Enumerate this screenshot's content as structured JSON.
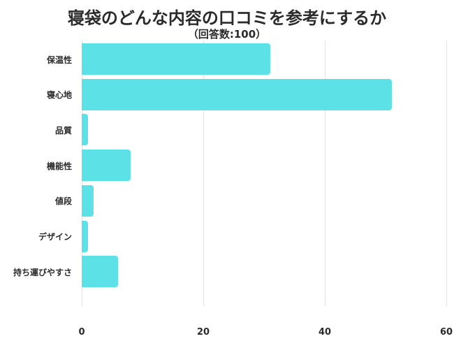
{
  "chart_data": {
    "type": "bar",
    "orientation": "horizontal",
    "title": "寝袋のどんな内容の口コミを参考にするか",
    "subtitle": "（回答数:100）",
    "xlabel": "",
    "ylabel": "",
    "categories": [
      "保温性",
      "寝心地",
      "品質",
      "機能性",
      "値段",
      "デザイン",
      "持ち運びやすさ"
    ],
    "values": [
      31,
      51,
      1,
      8,
      2,
      1,
      6
    ],
    "xlim": [
      0,
      60
    ],
    "xticks": [
      "0",
      "20",
      "40",
      "60"
    ],
    "grid": true,
    "legend": null,
    "bar_color": "#5ce1e6"
  }
}
